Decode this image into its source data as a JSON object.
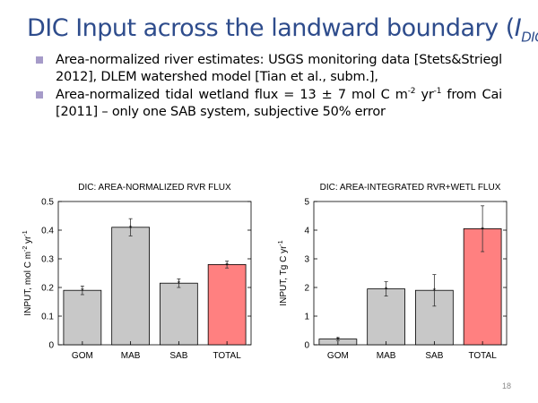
{
  "slide": {
    "title_main": "DIC Input across the landward boundary (",
    "title_var": "I",
    "title_sub": "DIC",
    "title_end": ")",
    "bullets": [
      {
        "pre": "Area-normalized river estimates: USGS monitoring data [Stets&Striegl 2012], DLEM watershed model [Tian et al., subm.],"
      },
      {
        "pre": "Area-normalized tidal wetland flux = 13 ± 7 mol C m",
        "sup1": "-2",
        "mid": " yr",
        "sup2": "-1",
        "post": " from Cai [2011] – only one SAB system, subjective 50% error"
      }
    ],
    "page_number": "18"
  },
  "chart_data": [
    {
      "type": "bar",
      "title": "DIC: AREA-NORMALIZED RVR FLUX",
      "categories": [
        "GOM",
        "MAB",
        "SAB",
        "TOTAL"
      ],
      "values": [
        0.19,
        0.41,
        0.215,
        0.28
      ],
      "error_low": [
        0.175,
        0.38,
        0.2,
        0.268
      ],
      "error_high": [
        0.205,
        0.44,
        0.23,
        0.292
      ],
      "ylabel_main": "INPUT, mol C m",
      "ylabel_sup1": "-2",
      "ylabel_mid": " yr",
      "ylabel_sup2": "-1",
      "ylim": [
        0,
        0.5
      ],
      "yticks": [
        "0",
        "0.1",
        "0.2",
        "0.3",
        "0.4",
        "0.5"
      ],
      "colors": [
        "#C8C8C8",
        "#C8C8C8",
        "#C8C8C8",
        "#FF8080"
      ]
    },
    {
      "type": "bar",
      "title": "DIC: AREA-INTEGRATED RVR+WETL FLUX",
      "categories": [
        "GOM",
        "MAB",
        "SAB",
        "TOTAL"
      ],
      "values": [
        0.2,
        1.95,
        1.9,
        4.05
      ],
      "error_low": [
        0.15,
        1.7,
        1.35,
        3.25
      ],
      "error_high": [
        0.25,
        2.2,
        2.45,
        4.85
      ],
      "ylabel_main": "INPUT, Tg C yr",
      "ylabel_sup1": "-1",
      "ylim": [
        0,
        5
      ],
      "yticks": [
        "0",
        "1",
        "2",
        "3",
        "4",
        "5"
      ],
      "colors": [
        "#C8C8C8",
        "#C8C8C8",
        "#C8C8C8",
        "#FF8080"
      ]
    }
  ]
}
